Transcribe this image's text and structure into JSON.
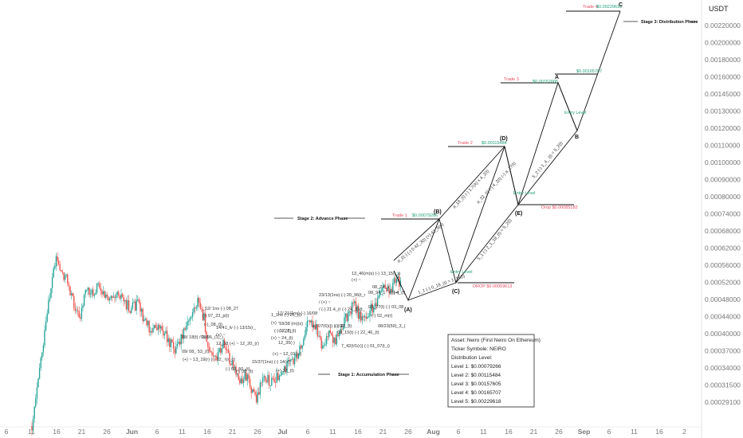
{
  "chart_data": {
    "type": "candlestick",
    "title": "",
    "quote_unit": "USDT",
    "y_ticks": [
      "0.00220000",
      "0.00200000",
      "0.00180000",
      "0.00160000",
      "0.00145000",
      "0.00130000",
      "0.00120000",
      "0.00110000",
      "0.00100000",
      "0.00090000",
      "0.00080000",
      "0.00074000",
      "0.00068000",
      "0.00062000",
      "0.00056000",
      "0.00052000",
      "0.00048000",
      "0.00044000",
      "0.00040000",
      "0.00037000",
      "0.00034000",
      "0.00031500",
      "0.00029100"
    ],
    "x_ticks": [
      "6",
      "11",
      "16",
      "21",
      "26",
      "Jun",
      "6",
      "11",
      "16",
      "21",
      "26",
      "Jul",
      "6",
      "11",
      "16",
      "21",
      "26",
      "Aug",
      "6",
      "11",
      "16",
      "21",
      "26",
      "Sep",
      "6",
      "11",
      "16",
      "2"
    ],
    "x_ticks_bold": [
      "Jun",
      "Jul",
      "Aug",
      "Sep"
    ],
    "stages": {
      "accumulation": "Stage 1: Accumulation Phase",
      "advance": "Stage 2: Advance Phase",
      "distribution": "Stage 3: Distribution Phase"
    },
    "trades": [
      {
        "label": "Trade 1",
        "price": "$0.00079266"
      },
      {
        "label": "Trade 2",
        "price": "$0.00115484"
      },
      {
        "label": "Trade 3",
        "price": "$0.00157605"
      },
      {
        "label": "Trade 4",
        "price": "$0.00229618"
      }
    ],
    "target_label": "$0.00165707",
    "drops": [
      "DROP $0.00059613",
      "Drop $0.00085182"
    ],
    "entries": [
      "Entry Level",
      "Entry Level",
      "Entry Level"
    ],
    "points": [
      "(A)",
      "(B)",
      "(C)",
      "(D)",
      "(E)",
      "A",
      "B",
      "C"
    ],
    "annotations": [
      "13_46(m)s) (-) 13_15(t_i)",
      "(+) ~",
      "08_24_ir",
      "08_94_1",
      "(-)(+)",
      "_52/ 1ns (-) 08_27",
      "(-) 07_23_p(i)",
      "(-)_08_(t)",
      "08/ 18(t) / 1(-)",
      "09/06_(1)_i",
      "09/ 08_ 53_(t)",
      "(+) ~ 13_19(r) (-) 12_ t(r_c)",
      "14/41_lv (-) 13/15(r_",
      "(+) ~",
      "12_38 (+) ~ 12_20_(r)",
      "(-) 08_50_(t)",
      "(-) 08_(t)",
      "1_1ns (-) 26_(t)",
      "(+) ~",
      "(-) 12_(t)",
      "(-) 27_(t)",
      "(+) ~ 24_(t)",
      "17/ 21(1ns) (-) 16/08",
      "18/38 (m)(s)",
      "15/37(1ns) (-) 14(+)",
      "(+) 37_(t)",
      "12_35(-)",
      "(+) ~ 12_01(tc)",
      "23/13(1ns) (-) 20_96(t_r",
      "/ (+) ~",
      "/ (-) 21.4_(r (-) 24_31(t_",
      "(-) 07(6)(t) (-) 08",
      "(-) 17_(t)",
      "7_42(t/1(r)) (-) 01_07(t_i)",
      "08_15(t) (-) 22_46_(t)",
      "08_27(t) (-) 03_08",
      "08/23(59)_3_(",
      "(-) 02_m(r)",
      "(-) 4_(t)"
    ],
    "waves": [
      "a_2(-) (-) 0.42_3(t) (+) 42_5(n)",
      "a_18_(t) (-) 1.7(A) x 4_2(t)",
      "a_32_(t) (-) 4_2(t) (-) a_27(t)",
      "1_1 (-) 0_18_(t) = 1_15(t)",
      "5_1 (-) 2_1_18_(t) = 5_2(t)",
      "5_2 (-) 1_4_ (t) = 5_2(t)"
    ],
    "info_box": {
      "asset": "Asset: Neiro (First Neiro On Ethereum)",
      "ticker": "Ticker Symbole: NEIRO",
      "heading": "Distribution Level:",
      "levels": [
        "Level 1: $0.00079266",
        "Level 2: $0.00115484",
        "Level 3: $0.00157605",
        "Level 4: $0.00165707",
        "Level 5: $0.00229618"
      ]
    }
  }
}
